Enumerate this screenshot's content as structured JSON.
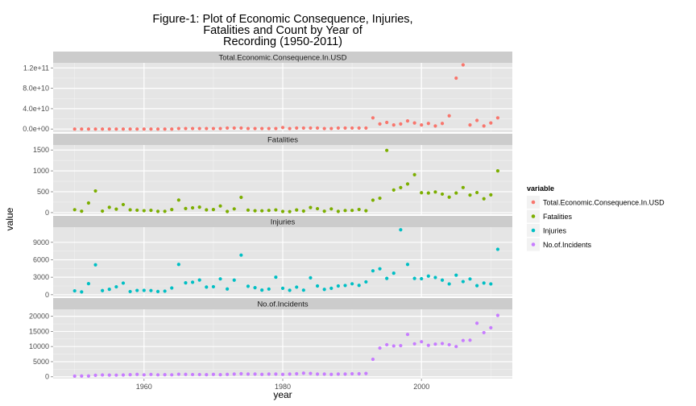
{
  "chart_data": {
    "type": "scatter",
    "title_lines": [
      "Figure-1: Plot of Economic Consequence, Injuries,",
      "Fatalities and Count by Year of",
      "Recording (1950-2011)"
    ],
    "xlabel": "year",
    "ylabel": "value",
    "xlim": [
      1946.9,
      2013.1
    ],
    "x_ticks": [
      1960,
      1980,
      2000
    ],
    "x_tick_labels": [
      "1960",
      "1980",
      "2000"
    ],
    "grid": true,
    "facet_scales": "free_y",
    "legend": {
      "title": "variable",
      "position": "right",
      "entries": [
        {
          "label": "Total.Economic.Consequence.In.USD",
          "color": "#F8766D"
        },
        {
          "label": "Fatalities",
          "color": "#7CAE00"
        },
        {
          "label": "Injuries",
          "color": "#00BFC4"
        },
        {
          "label": "No.of.Incidents",
          "color": "#C77CFF"
        }
      ]
    },
    "panels": [
      {
        "name": "Total.Economic.Consequence.In.USD",
        "color": "#F8766D",
        "ylim": [
          -6000000000.0,
          130000000000.0
        ],
        "y_ticks": [
          0,
          40000000000.0,
          80000000000.0,
          120000000000.0
        ],
        "y_tick_labels": [
          "0.0e+00",
          "4.0e+10",
          "8.0e+10",
          "1.2e+11"
        ],
        "x": [
          1950,
          1951,
          1952,
          1953,
          1954,
          1955,
          1956,
          1957,
          1958,
          1959,
          1960,
          1961,
          1962,
          1963,
          1964,
          1965,
          1966,
          1967,
          1968,
          1969,
          1970,
          1971,
          1972,
          1973,
          1974,
          1975,
          1976,
          1977,
          1978,
          1979,
          1980,
          1981,
          1982,
          1983,
          1984,
          1985,
          1986,
          1987,
          1988,
          1989,
          1990,
          1991,
          1992,
          1993,
          1994,
          1995,
          1996,
          1997,
          1998,
          1999,
          2000,
          2001,
          2002,
          2003,
          2004,
          2005,
          2006,
          2007,
          2008,
          2009,
          2010,
          2011
        ],
        "y": [
          0,
          0,
          0,
          0,
          0,
          0,
          0,
          0,
          0,
          0,
          0,
          0,
          0,
          0,
          0,
          1000000000.0,
          1000000000.0,
          1000000000.0,
          1000000000.0,
          1000000000.0,
          1000000000.0,
          1000000000.0,
          2000000000.0,
          2000000000.0,
          2000000000.0,
          1000000000.0,
          1000000000.0,
          1000000000.0,
          1000000000.0,
          1000000000.0,
          3000000000.0,
          1000000000.0,
          2000000000.0,
          2000000000.0,
          2000000000.0,
          2000000000.0,
          1000000000.0,
          1000000000.0,
          2000000000.0,
          2000000000.0,
          2000000000.0,
          2000000000.0,
          2000000000.0,
          22000000000.0,
          10000000000.0,
          13000000000.0,
          8000000000.0,
          10000000000.0,
          16000000000.0,
          12000000000.0,
          8000000000.0,
          11000000000.0,
          6000000000.0,
          11000000000.0,
          26000000000.0,
          100000000000.0,
          126000000000.0,
          8000000000.0,
          17000000000.0,
          6000000000.0,
          12000000000.0,
          22000000000.0
        ]
      },
      {
        "name": "Fatalities",
        "color": "#7CAE00",
        "ylim": [
          -40,
          1620
        ],
        "y_ticks": [
          0,
          500,
          1000,
          1500
        ],
        "y_tick_labels": [
          "0",
          "500",
          "1000",
          "1500"
        ],
        "x": [
          1950,
          1951,
          1952,
          1953,
          1954,
          1955,
          1956,
          1957,
          1958,
          1959,
          1960,
          1961,
          1962,
          1963,
          1964,
          1965,
          1966,
          1967,
          1968,
          1969,
          1970,
          1971,
          1972,
          1973,
          1974,
          1975,
          1976,
          1977,
          1978,
          1979,
          1980,
          1981,
          1982,
          1983,
          1984,
          1985,
          1986,
          1987,
          1988,
          1989,
          1990,
          1991,
          1992,
          1993,
          1994,
          1995,
          1996,
          1997,
          1998,
          1999,
          2000,
          2001,
          2002,
          2003,
          2004,
          2005,
          2006,
          2007,
          2008,
          2009,
          2010,
          2011
        ],
        "y": [
          70,
          34,
          230,
          519,
          36,
          126,
          83,
          193,
          67,
          58,
          46,
          55,
          30,
          31,
          73,
          301,
          98,
          114,
          131,
          66,
          73,
          159,
          27,
          89,
          366,
          60,
          44,
          43,
          53,
          65,
          28,
          24,
          64,
          37,
          122,
          94,
          34,
          89,
          30,
          50,
          53,
          75,
          45,
          298,
          345,
          1491,
          542,
          600,
          686,
          908,
          477,
          470,
          494,
          444,
          370,
          470,
          601,
          420,
          480,
          331,
          425,
          1000
        ]
      },
      {
        "name": "Injuries",
        "color": "#00BFC4",
        "ylim": [
          -300,
          11600
        ],
        "y_ticks": [
          0,
          3000,
          6000,
          9000
        ],
        "y_tick_labels": [
          "0",
          "3000",
          "6000",
          "9000"
        ],
        "x": [
          1950,
          1951,
          1952,
          1953,
          1954,
          1955,
          1956,
          1957,
          1958,
          1959,
          1960,
          1961,
          1962,
          1963,
          1964,
          1965,
          1966,
          1967,
          1968,
          1969,
          1970,
          1971,
          1972,
          1973,
          1974,
          1975,
          1976,
          1977,
          1978,
          1979,
          1980,
          1981,
          1982,
          1983,
          1984,
          1985,
          1986,
          1987,
          1988,
          1989,
          1990,
          1991,
          1992,
          1993,
          1994,
          1995,
          1996,
          1997,
          1998,
          1999,
          2000,
          2001,
          2002,
          2003,
          2004,
          2005,
          2006,
          2007,
          2008,
          2009,
          2010,
          2011
        ],
        "y": [
          659,
          480,
          1900,
          5131,
          700,
          930,
          1350,
          1990,
          540,
          730,
          740,
          710,
          550,
          610,
          1150,
          5200,
          2030,
          2140,
          2520,
          1310,
          1370,
          2720,
          980,
          2500,
          6800,
          1450,
          1200,
          790,
          970,
          3010,
          1100,
          760,
          1300,
          780,
          2900,
          1500,
          910,
          1100,
          1500,
          1580,
          1870,
          1600,
          2200,
          4100,
          4450,
          2800,
          3700,
          11150,
          5200,
          2800,
          2750,
          3200,
          2950,
          2500,
          1850,
          3350,
          2250,
          2700,
          1550,
          2000,
          1850,
          7800
        ]
      },
      {
        "name": "No.of.Incidents",
        "color": "#C77CFF",
        "ylim": [
          -600,
          22300
        ],
        "y_ticks": [
          0,
          5000,
          10000,
          15000,
          20000
        ],
        "y_tick_labels": [
          "0",
          "5000",
          "10000",
          "15000",
          "20000"
        ],
        "x": [
          1950,
          1951,
          1952,
          1953,
          1954,
          1955,
          1956,
          1957,
          1958,
          1959,
          1960,
          1961,
          1962,
          1963,
          1964,
          1965,
          1966,
          1967,
          1968,
          1969,
          1970,
          1971,
          1972,
          1973,
          1974,
          1975,
          1976,
          1977,
          1978,
          1979,
          1980,
          1981,
          1982,
          1983,
          1984,
          1985,
          1986,
          1987,
          1988,
          1989,
          1990,
          1991,
          1992,
          1993,
          1994,
          1995,
          1996,
          1997,
          1998,
          1999,
          2000,
          2001,
          2002,
          2003,
          2004,
          2005,
          2006,
          2007,
          2008,
          2009,
          2010,
          2011
        ],
        "y": [
          223,
          269,
          272,
          492,
          609,
          574,
          546,
          600,
          700,
          800,
          650,
          780,
          650,
          700,
          650,
          850,
          800,
          750,
          750,
          700,
          800,
          700,
          800,
          900,
          1000,
          900,
          900,
          800,
          900,
          900,
          800,
          900,
          1000,
          1200,
          1100,
          900,
          900,
          800,
          900,
          900,
          1000,
          1000,
          1100,
          5800,
          9500,
          10600,
          10200,
          10300,
          14000,
          10900,
          11600,
          10400,
          10800,
          11000,
          10600,
          10000,
          12000,
          12100,
          17700,
          14600,
          16200,
          20300
        ]
      }
    ]
  }
}
